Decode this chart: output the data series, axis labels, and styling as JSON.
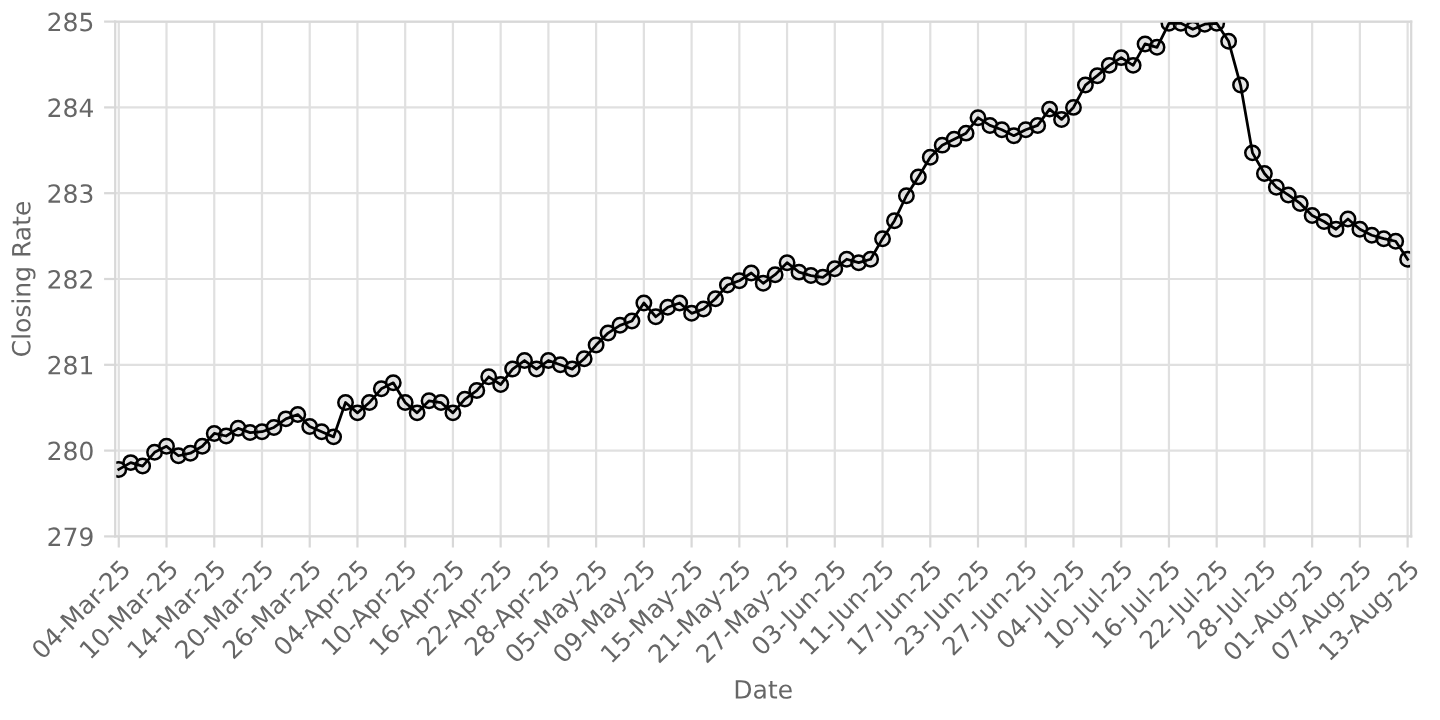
{
  "chart_data": {
    "type": "line",
    "xlabel": "Date",
    "ylabel": "Closing Rate",
    "categories": [
      "04-Mar-25",
      null,
      null,
      null,
      "10-Mar-25",
      null,
      null,
      null,
      "14-Mar-25",
      null,
      null,
      null,
      "20-Mar-25",
      null,
      null,
      null,
      "26-Mar-25",
      null,
      null,
      null,
      "04-Apr-25",
      null,
      null,
      null,
      "10-Apr-25",
      null,
      null,
      null,
      "16-Apr-25",
      null,
      null,
      null,
      "22-Apr-25",
      null,
      null,
      null,
      "28-Apr-25",
      null,
      null,
      null,
      "05-May-25",
      null,
      null,
      null,
      "09-May-25",
      null,
      null,
      null,
      "15-May-25",
      null,
      null,
      null,
      "21-May-25",
      null,
      null,
      null,
      "27-May-25",
      null,
      null,
      null,
      "03-Jun-25",
      null,
      null,
      null,
      "11-Jun-25",
      null,
      null,
      null,
      "17-Jun-25",
      null,
      null,
      null,
      "23-Jun-25",
      null,
      null,
      null,
      "27-Jun-25",
      null,
      null,
      null,
      "04-Jul-25",
      null,
      null,
      null,
      "10-Jul-25",
      null,
      null,
      null,
      "16-Jul-25",
      null,
      null,
      null,
      "22-Jul-25",
      null,
      null,
      null,
      "28-Jul-25",
      null,
      null,
      null,
      "01-Aug-25",
      null,
      null,
      null,
      "07-Aug-25",
      null,
      null,
      null,
      "13-Aug-25"
    ],
    "series": [
      {
        "color": "#000000",
        "values": [
          279.78,
          279.86,
          279.82,
          279.98,
          280.05,
          279.94,
          279.97,
          280.05,
          280.2,
          280.17,
          280.26,
          280.21,
          280.22,
          280.27,
          280.37,
          280.42,
          280.28,
          280.22,
          280.16,
          280.56,
          280.44,
          280.56,
          280.72,
          280.79,
          280.56,
          280.44,
          280.58,
          280.56,
          280.44,
          280.6,
          280.7,
          280.86,
          280.77,
          280.95,
          281.05,
          280.95,
          281.05,
          281.0,
          280.95,
          281.07,
          281.23,
          281.37,
          281.46,
          281.51,
          281.72,
          281.56,
          281.67,
          281.72,
          281.6,
          281.65,
          281.77,
          281.93,
          281.98,
          282.07,
          281.95,
          282.05,
          282.19,
          282.08,
          282.04,
          282.02,
          282.12,
          282.23,
          282.19,
          282.23,
          282.47,
          282.68,
          282.97,
          283.19,
          283.42,
          283.56,
          283.63,
          283.7,
          283.88,
          283.79,
          283.74,
          283.67,
          283.74,
          283.79,
          283.98,
          283.86,
          284.0,
          284.26,
          284.37,
          284.49,
          284.58,
          284.49,
          284.74,
          284.7,
          284.98,
          284.98,
          284.91,
          284.97,
          284.98,
          284.77,
          284.26,
          283.47,
          283.23,
          283.07,
          282.98,
          282.88,
          282.74,
          282.67,
          282.58,
          282.7,
          282.58,
          282.51,
          282.47,
          282.44,
          282.23
        ]
      }
    ],
    "ylim": [
      279,
      285
    ],
    "yticks": [
      279,
      280,
      281,
      282,
      283,
      284,
      285
    ],
    "grid": true,
    "marker": "circle",
    "line_style": "solid",
    "legend": false
  }
}
